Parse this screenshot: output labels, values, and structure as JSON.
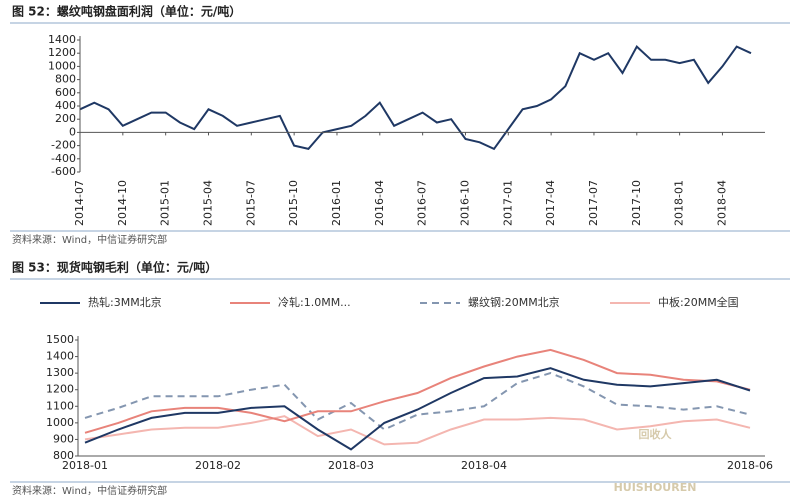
{
  "chart_data": [
    {
      "type": "line",
      "title": "图 52：螺纹吨钢盘面利润（单位：元/吨）",
      "x": [
        "2014-07",
        "2014-08",
        "2014-09",
        "2014-10",
        "2014-11",
        "2014-12",
        "2015-01",
        "2015-02",
        "2015-03",
        "2015-04",
        "2015-05",
        "2015-06",
        "2015-07",
        "2015-08",
        "2015-09",
        "2015-10",
        "2015-11",
        "2015-12",
        "2016-01",
        "2016-02",
        "2016-03",
        "2016-04",
        "2016-05",
        "2016-06",
        "2016-07",
        "2016-08",
        "2016-09",
        "2016-10",
        "2016-11",
        "2016-12",
        "2017-01",
        "2017-02",
        "2017-03",
        "2017-04",
        "2017-05",
        "2017-06",
        "2017-07",
        "2017-08",
        "2017-09",
        "2017-10",
        "2017-11",
        "2017-12",
        "2018-01",
        "2018-02",
        "2018-03",
        "2018-04",
        "2018-05",
        "2018-06"
      ],
      "xticks": [
        "2014-07",
        "2014-10",
        "2015-01",
        "2015-04",
        "2015-07",
        "2015-10",
        "2016-01",
        "2016-04",
        "2016-07",
        "2016-10",
        "2017-01",
        "2017-04",
        "2017-07",
        "2017-10",
        "2018-01",
        "2018-04"
      ],
      "series": [
        {
          "color": "#1f3864",
          "values": [
            350,
            450,
            350,
            100,
            200,
            300,
            300,
            150,
            50,
            350,
            250,
            100,
            150,
            200,
            250,
            -200,
            -250,
            0,
            50,
            100,
            250,
            450,
            100,
            200,
            300,
            150,
            200,
            -100,
            -150,
            -250,
            50,
            350,
            400,
            500,
            700,
            1200,
            1100,
            1200,
            900,
            1300,
            1100,
            1100,
            1050,
            1100,
            750,
            1000,
            1300,
            1200
          ]
        }
      ],
      "ylim": [
        -600,
        1400
      ],
      "yticks": [
        -600,
        -400,
        -200,
        0,
        200,
        400,
        600,
        800,
        1000,
        1200,
        1400
      ],
      "source": "资料来源：Wind，中信证券研究部"
    },
    {
      "type": "line",
      "title": "图 53：现货吨钢毛利（单位：元/吨）",
      "categories": [
        "2018-01",
        null,
        null,
        null,
        "2018-02",
        null,
        null,
        null,
        "2018-03",
        null,
        null,
        null,
        "2018-04",
        null,
        null,
        null,
        null,
        null,
        null,
        null,
        "2018-06"
      ],
      "series": [
        {
          "name": "热轧:3MM北京",
          "color": "#1f3864",
          "dash": false,
          "values": [
            880,
            960,
            1030,
            1060,
            1060,
            1090,
            1100,
            960,
            840,
            1000,
            1080,
            1180,
            1270,
            1280,
            1330,
            1260,
            1230,
            1220,
            1240,
            1260,
            1195
          ]
        },
        {
          "name": "冷轧:1.0MM...",
          "color": "#e8837a",
          "dash": false,
          "values": [
            940,
            1000,
            1070,
            1090,
            1090,
            1060,
            1010,
            1070,
            1070,
            1130,
            1180,
            1270,
            1340,
            1400,
            1440,
            1380,
            1300,
            1290,
            1260,
            1250,
            1200
          ]
        },
        {
          "name": "螺纹钢:20MM北京",
          "color": "#8496b0",
          "dash": true,
          "values": [
            1030,
            1090,
            1160,
            1160,
            1160,
            1200,
            1230,
            1020,
            1120,
            960,
            1050,
            1070,
            1100,
            1240,
            1300,
            1220,
            1110,
            1100,
            1080,
            1100,
            1050
          ]
        },
        {
          "name": "中板:20MM全国",
          "color": "#f4b6b0",
          "dash": false,
          "values": [
            900,
            930,
            960,
            970,
            970,
            1000,
            1040,
            920,
            960,
            870,
            880,
            960,
            1020,
            1020,
            1030,
            1020,
            960,
            980,
            1010,
            1020,
            970
          ]
        }
      ],
      "ylim": [
        800,
        1500
      ],
      "yticks": [
        800,
        900,
        1000,
        1100,
        1200,
        1300,
        1400,
        1500
      ],
      "source": "资料来源：Wind，中信证券研究部"
    }
  ],
  "watermark": {
    "logo": "回收人",
    "text": "HUISHOUREN"
  }
}
